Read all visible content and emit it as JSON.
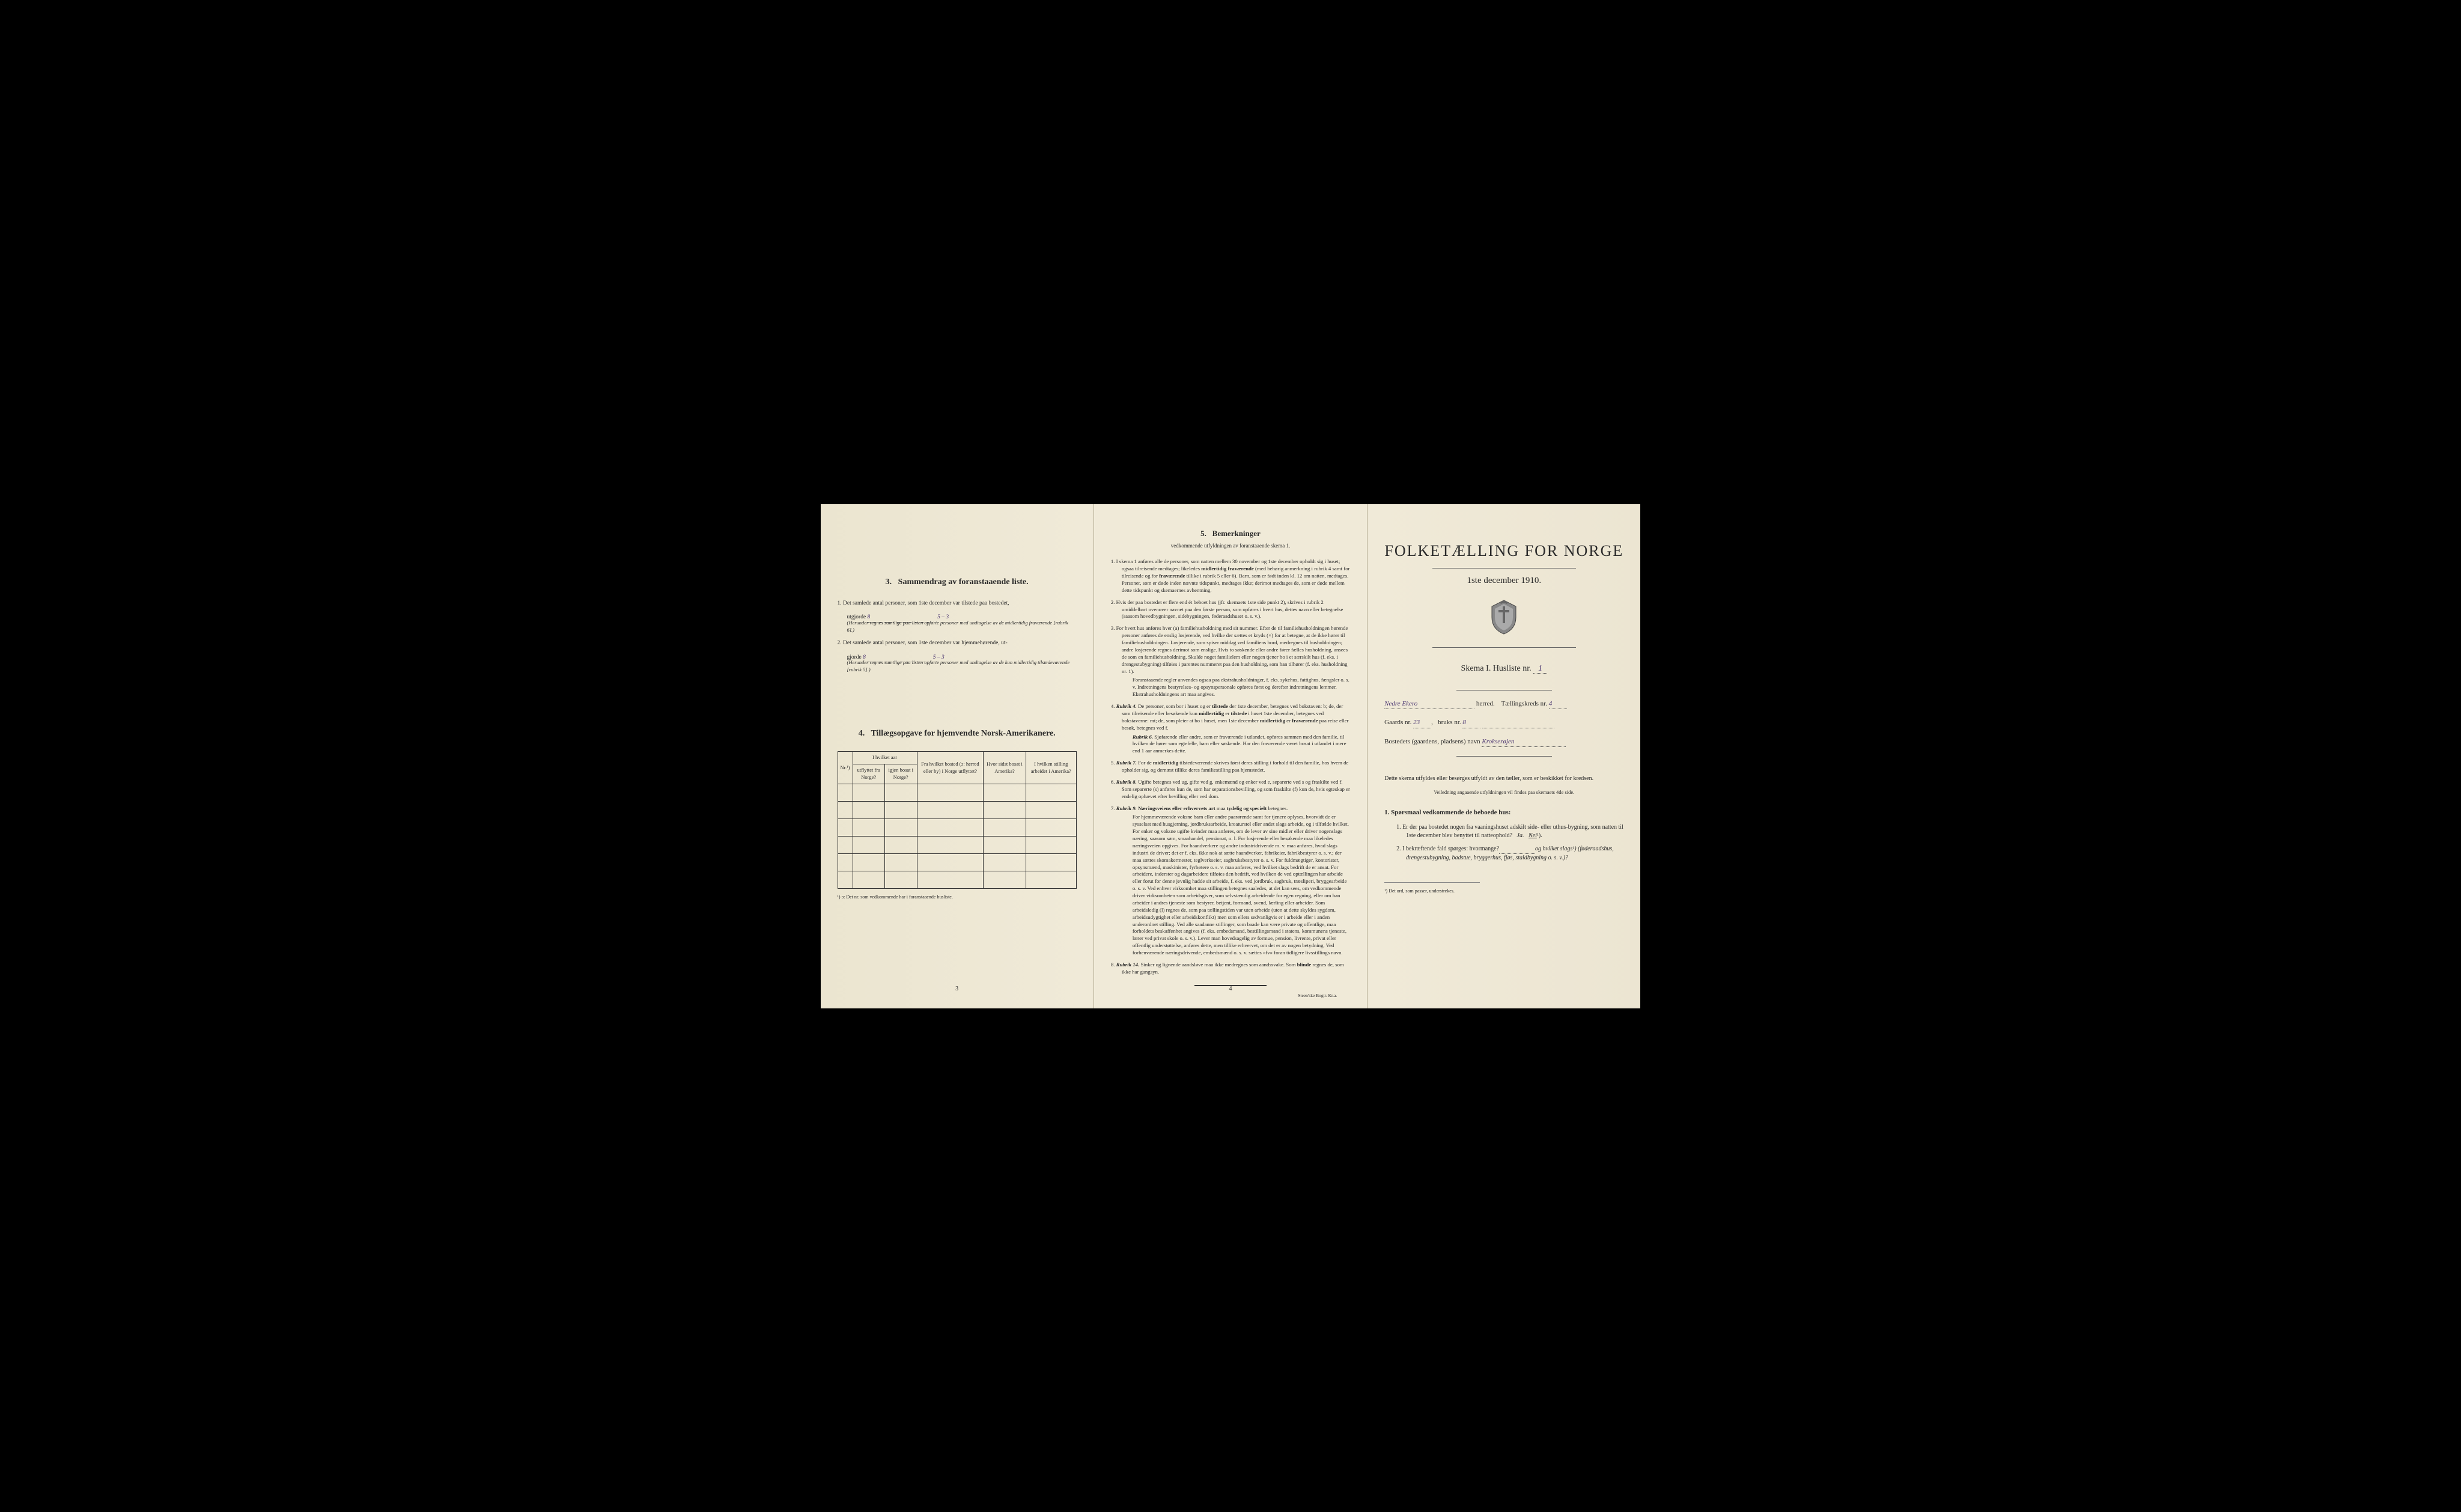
{
  "colors": {
    "background": "#000000",
    "page_bg": "#f0ead8",
    "text": "#2a2a2a",
    "handwritten": "#4a3570",
    "border": "#333333"
  },
  "typography": {
    "body_font": "Times New Roman",
    "body_size_pt": 9.5,
    "heading_size_pt": 14,
    "title_size_pt": 26
  },
  "page1": {
    "section3_number": "3.",
    "section3_title": "Sammendrag av foranstaaende liste.",
    "item1_num": "1.",
    "item1_text": "Det samlede antal personer, som 1ste december var tilstede paa bostedet,",
    "item1_label": "utgjorde",
    "item1_value": "8",
    "item1_hand2": "5 – 3",
    "item1_note": "(Herunder regnes samtlige paa listen opførte personer med undtagelse av de midlertidig fraværende [rubrik 6].)",
    "item2_num": "2.",
    "item2_text": "Det samlede antal personer, som 1ste december var hjemmehørende, ut-",
    "item2_label": "gjorde",
    "item2_value": "8",
    "item2_hand2": "5 – 3",
    "item2_note": "(Herunder regnes samtlige paa listen opførte personer med undtagelse av de kun midlertidig tilstedeværende [rubrik 5].)",
    "section4_number": "4.",
    "section4_title": "Tillægsopgave for hjemvendte Norsk-Amerikanere.",
    "table": {
      "col1": "Nr.¹)",
      "col2_header": "I hvilket aar",
      "col2a": "utflyttet fra Norge?",
      "col2b": "igjen bosat i Norge?",
      "col3": "Fra hvilket bosted (ɔ: herred eller by) i Norge utflyttet?",
      "col4": "Hvor sidst bosat i Amerika?",
      "col5": "I hvilken stilling arbeidet i Amerika?",
      "empty_rows": 6
    },
    "footnote1": "¹) ɔ: Det nr. som vedkommende har i foranstaaende husliste.",
    "page_num": "3"
  },
  "page2": {
    "section5_number": "5.",
    "section5_title": "Bemerkninger",
    "section5_sub": "vedkommende utfyldningen av foranstaaende skema 1.",
    "items": [
      {
        "num": "1.",
        "text": "I skema 1 anføres alle de personer, som natten mellem 30 november og 1ste december opholdt sig i huset; ogsaa tilreisende medtages; likeledes midlertidig fraværende (med behørig anmerkning i rubrik 4 samt for tilreisende og for fraværende tillike i rubrik 5 eller 6). Barn, som er født inden kl. 12 om natten, medtages. Personer, som er døde inden nævnte tidspunkt, medtages ikke; derimot medtages de, som er døde mellem dette tidspunkt og skemaernes avhentning."
      },
      {
        "num": "2.",
        "text": "Hvis der paa bostedet er flere end ét beboet hus (jfr. skemaets 1ste side punkt 2), skrives i rubrik 2 umiddelbart ovenover navnet paa den første person, som opføres i hvert hus, dettes navn eller betegnelse (saasom hovedbygningen, sidebygningen, føderaadshuset o. s. v.)."
      },
      {
        "num": "3.",
        "text": "For hvert hus anføres hver (a) familiehusholdning med sit nummer. Efter de til familiehusholdningen hørende personer anføres de enslig losjerende, ved hvilke der sættes et kryds (×) for at betegne, at de ikke hører til familiehusholdningen. Losjerende, som spiser middag ved familiens bord, medregnes til husholdningen; andre losjerende regnes derimot som enslige. Hvis to søskende eller andre fører fælles husholdning, ansees de som en familiehusholdning. Skulde noget familielem eller nogen tjener bo i et særskilt hus (f. eks. i drengestubygning) tilføies i parentes nummeret paa den husholdning, som han tilhører (f. eks. husholdning nr. 1).",
        "sub": "Foranstaaende regler anvendes ogsaa paa ekstrahusholdninger, f. eks. sykehus, fattighus, fængsler o. s. v. Indretningens bestyrelses- og opsynspersonale opføres først og derefter indretningens lemmer. Ekstrahusholdningens art maa angives."
      },
      {
        "num": "4.",
        "text": "Rubrik 4. De personer, som bor i huset og er tilstede der 1ste december, betegnes ved bokstaven: b; de, der som tilreisende eller besøkende kun midlertidig er tilstede i huset 1ste december, betegnes ved bokstaverne: mt; de, som pleier at bo i huset, men 1ste december midlertidig er fraværende paa reise eller besøk, betegnes ved f.",
        "sub": "Rubrik 6. Sjøfarende eller andre, som er fraværende i utlandet, opføres sammen med den familie, til hvilken de hører som egtefelle, barn eller søskende. Har den fraværende været bosat i utlandet i mere end 1 aar anmerkes dette."
      },
      {
        "num": "5.",
        "text": "Rubrik 7. For de midlertidig tilstedeværende skrives først deres stilling i forhold til den familie, hos hvem de opholder sig, og dernæst tillike deres familiestilling paa hjemstedet."
      },
      {
        "num": "6.",
        "text": "Rubrik 8. Ugifte betegnes ved ug, gifte ved g, enkemænd og enker ved e, separerte ved s og fraskilte ved f. Som separerte (s) anføres kun de, som har separationsbevilling, og som fraskilte (f) kun de, hvis egteskap er endelig ophævet efter bevilling eller ved dom."
      },
      {
        "num": "7.",
        "text": "Rubrik 9. Næringsveiens eller erhvervets art maa tydelig og specielt betegnes.",
        "sub": "For hjemmeværende voksne barn eller andre paarørende samt for tjenere oplyses, hvorvidt de er sysselsat med husgjerning, jordbruksarbeide, kreaturstel eller andet slags arbeide, og i tilfælde hvilket. For enker og voksne ugifte kvinder maa anføres, om de lever av sine midler eller driver nogenslags næring, saasom søm, smaahandel, pensionat, o. l. For losjerende eller besøkende maa likeledes næringsveien opgives. For haandverkere og andre industridrivende m. v. maa anføres, hvad slags industri de driver; det er f. eks. ikke nok at sætte haandverker, fabrikeier, fabrikbestyrer o. s. v.; der maa sættes skomakermester, teglverkseier, sagbruksbestyrer o. s. v. For fuldmægtiger, kontorister, opsynsmænd, maskinister, fyrbøtere o. s. v. maa anføres, ved hvilket slags bedrift de er ansat. For arbeidere, inderster og dagarbeidere tilføies den bedrift, ved hvilken de ved optællingen har arbeide eller forut for denne jevnlig hadde sit arbeide, f. eks. ved jordbruk, sagbruk, træsliperi, bryggearbeide o. s. v. Ved enhver virksomhet maa stillingen betegnes saaledes, at det kan sees, om vedkommende driver virksomheten som arbeidsgiver, som selvstændig arbeidende for egen regning, eller om han arbeider i andres tjeneste som bestyrer, betjent, formand, svend, lærling eller arbeider. Som arbeidsledig (l) regnes de, som paa tællingstiden var uten arbeide (uten at dette skyldes sygdom, arbeidsudygtighet eller arbeidskonflikt) men som ellers sedvanligvis er i arbeide eller i anden underordnet stilling. Ved alle saadanne stillinger, som baade kan være private og offentlige, maa forholdets beskaffenhet angives (f. eks. embedsmand, bestillingsmand i statens, kommunens tjeneste, lærer ved privat skole o. s. v.). Lever man hovedsagelig av formue, pension, livrente, privat eller offentlig understøttelse, anføres dette, men tillike erhvervet, om det er av nogen betydning. Ved forhenværende næringsdrivende, embedsmænd o. s. v. sættes «fv» foran tidligere livsstillings navn."
      },
      {
        "num": "8.",
        "text": "Rubrik 14. Sinker og lignende aandsløve maa ikke medregnes som aandssvake. Som blinde regnes de, som ikke har gangsyn."
      }
    ],
    "page_num": "4",
    "printer": "Steen'ske Bogtr. Kr.a."
  },
  "page3": {
    "title": "FOLKETÆLLING FOR NORGE",
    "subtitle": "1ste december 1910.",
    "skema_label": "Skema I.  Husliste nr.",
    "husliste_nr": "1",
    "herred_value": "Nedre Ekero",
    "herred_label": "herred.",
    "kreds_label": "Tællingskreds nr.",
    "kreds_value": "4",
    "gaards_label": "Gaards nr.",
    "gaards_value": "23",
    "bruks_label": "bruks nr.",
    "bruks_value": "8",
    "bosted_label": "Bostedets (gaardens, pladsens) navn",
    "bosted_value": "Krokserøjen",
    "info_text": "Dette skema utfyldes eller besørges utfyldt av den tæller, som er beskikket for kredsen.",
    "info_sub": "Veiledning angaaende utfyldningen vil findes paa skemaets 4de side.",
    "q_heading_num": "1.",
    "q_heading": "Spørsmaal vedkommende de beboede hus:",
    "q1_num": "1.",
    "q1_text": "Er der paa bostedet nogen fra vaaningshuset adskilt side- eller uthus-bygning, som natten til 1ste december blev benyttet til natteophold?",
    "q1_ja": "Ja.",
    "q1_nei": "Nei",
    "q1_sup": "¹).",
    "q2_num": "2.",
    "q2_text": "I bekræftende fald spørges: hvormange?",
    "q2_text2": "og hvilket slags¹) (føderaadshus, drengestubygning, badstue, bryggerhus, fjøs, staldbygning o. s. v.)?",
    "footnote": "¹) Det ord, som passer, understrekes."
  }
}
